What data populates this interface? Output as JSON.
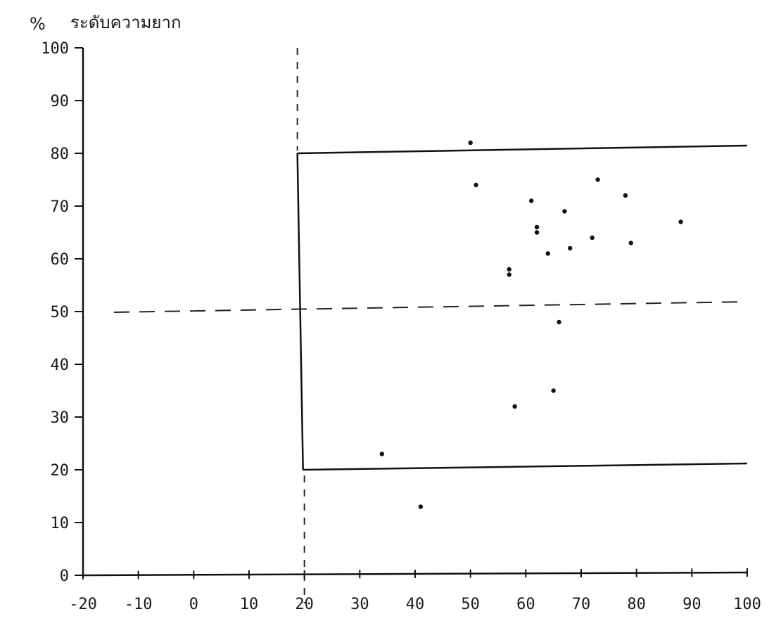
{
  "chart_data": {
    "type": "scatter",
    "y_unit_label": "%",
    "ylabel": "ระดับความยาก",
    "xlabel": "",
    "xlim": [
      -20,
      100
    ],
    "ylim": [
      0,
      100
    ],
    "x_ticks": [
      -20,
      -10,
      0,
      10,
      20,
      30,
      40,
      50,
      60,
      70,
      80,
      90,
      100
    ],
    "y_ticks": [
      0,
      10,
      20,
      30,
      40,
      50,
      60,
      70,
      80,
      90,
      100
    ],
    "grid": false,
    "reference_lines": [
      {
        "orientation": "horizontal",
        "value": 50,
        "style": "dashed"
      },
      {
        "orientation": "vertical",
        "value": 20,
        "style": "dashed"
      }
    ],
    "acceptance_region": {
      "x_min": 20,
      "x_max": 100,
      "y_min": 20,
      "y_max": 80
    },
    "points": [
      {
        "x": 50,
        "y": 82
      },
      {
        "x": 51,
        "y": 74
      },
      {
        "x": 73,
        "y": 75
      },
      {
        "x": 61,
        "y": 71
      },
      {
        "x": 78,
        "y": 72
      },
      {
        "x": 67,
        "y": 69
      },
      {
        "x": 88,
        "y": 67
      },
      {
        "x": 62,
        "y": 66
      },
      {
        "x": 62,
        "y": 65
      },
      {
        "x": 72,
        "y": 64
      },
      {
        "x": 79,
        "y": 63
      },
      {
        "x": 68,
        "y": 62
      },
      {
        "x": 64,
        "y": 61
      },
      {
        "x": 57,
        "y": 58
      },
      {
        "x": 57,
        "y": 57
      },
      {
        "x": 66,
        "y": 48
      },
      {
        "x": 65,
        "y": 35
      },
      {
        "x": 58,
        "y": 32
      },
      {
        "x": 34,
        "y": 23
      },
      {
        "x": 41,
        "y": 13
      }
    ]
  }
}
